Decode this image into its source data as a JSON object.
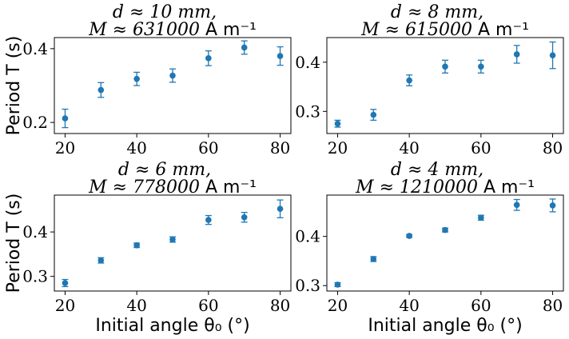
{
  "chart_data": [
    {
      "type": "scatter",
      "title_line1": "d ≈ 10 mm,",
      "title_line2": "M ≈ 631000 A m⁻¹",
      "xlabel": "",
      "ylabel": "Period T (s)",
      "xlim": [
        17,
        83
      ],
      "ylim": [
        0.17,
        0.43
      ],
      "xticks": [
        20,
        40,
        60,
        80
      ],
      "yticks": [
        0.2,
        0.4
      ],
      "grid": false,
      "x": [
        20,
        30,
        40,
        50,
        60,
        70,
        80
      ],
      "y": [
        0.211,
        0.288,
        0.318,
        0.327,
        0.374,
        0.403,
        0.38
      ],
      "yerr": [
        0.025,
        0.02,
        0.018,
        0.018,
        0.02,
        0.018,
        0.025
      ]
    },
    {
      "type": "scatter",
      "title_line1": "d ≈ 8 mm,",
      "title_line2": "M ≈ 615000 A m⁻¹",
      "xlabel": "",
      "ylabel": "",
      "xlim": [
        17,
        83
      ],
      "ylim": [
        0.255,
        0.45
      ],
      "xticks": [
        20,
        40,
        60,
        80
      ],
      "yticks": [
        0.3,
        0.4
      ],
      "grid": false,
      "x": [
        20,
        30,
        40,
        50,
        60,
        70,
        80
      ],
      "y": [
        0.275,
        0.293,
        0.363,
        0.391,
        0.391,
        0.416,
        0.414
      ],
      "yerr": [
        0.007,
        0.011,
        0.011,
        0.013,
        0.013,
        0.018,
        0.027
      ]
    },
    {
      "type": "scatter",
      "title_line1": "d ≈ 6 mm,",
      "title_line2": "M ≈ 778000 A m⁻¹",
      "xlabel": "Initial angle θ₀ (°)",
      "ylabel": "Period T (s)",
      "xlim": [
        17,
        83
      ],
      "ylim": [
        0.267,
        0.483
      ],
      "xticks": [
        20,
        40,
        60,
        80
      ],
      "yticks": [
        0.3,
        0.4
      ],
      "grid": false,
      "x": [
        20,
        30,
        40,
        50,
        60,
        70,
        80
      ],
      "y": [
        0.285,
        0.336,
        0.37,
        0.383,
        0.427,
        0.433,
        0.452
      ],
      "yerr": [
        0.008,
        0.006,
        0.005,
        0.006,
        0.01,
        0.011,
        0.02
      ]
    },
    {
      "type": "scatter",
      "title_line1": "d ≈ 4 mm,",
      "title_line2": "M ≈ 1210000 A m⁻¹",
      "xlabel": "Initial angle θ₀ (°)",
      "ylabel": "",
      "xlim": [
        17,
        83
      ],
      "ylim": [
        0.289,
        0.484
      ],
      "xticks": [
        20,
        40,
        60,
        80
      ],
      "yticks": [
        0.3,
        0.4
      ],
      "grid": false,
      "x": [
        20,
        30,
        40,
        50,
        60,
        70,
        80
      ],
      "y": [
        0.302,
        0.354,
        0.401,
        0.413,
        0.438,
        0.464,
        0.463
      ],
      "yerr": [
        0.004,
        0.005,
        0.003,
        0.004,
        0.005,
        0.011,
        0.013
      ]
    }
  ],
  "colors": {
    "series": "#1f77b4"
  }
}
